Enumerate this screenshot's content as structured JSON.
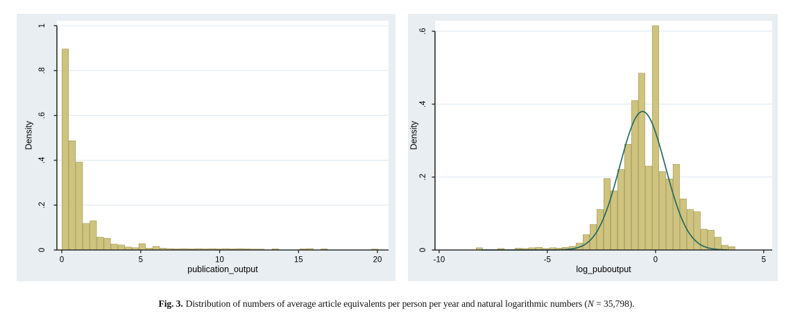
{
  "figure": {
    "caption": {
      "label": "Fig. 3.",
      "body": "Distribution of numbers of average article equivalents per person per year and natural logarithmic numbers (",
      "n_symbol": "N",
      "tail": " = 35,798)."
    }
  },
  "style": {
    "panel_bg": "#e8eef2",
    "plot_bg": "#ffffff",
    "grid_color": "#dfeaf3",
    "axis_color": "#2b2b2b",
    "text_color": "#000000",
    "bar_fill": "#cfc47f",
    "bar_stroke": "#a79b5c",
    "curve_color": "#25685f"
  },
  "chart_data": [
    {
      "type": "bar",
      "title": "",
      "xlabel": "publication_output",
      "ylabel": "Density",
      "xlim": [
        -0.31,
        20.7
      ],
      "ylim": [
        0,
        1.022
      ],
      "xticks": [
        0,
        5,
        10,
        15,
        20
      ],
      "xtick_labels": [
        "0",
        "5",
        "10",
        "15",
        "20"
      ],
      "yticks": [
        0,
        0.2,
        0.4,
        0.6,
        0.8,
        1
      ],
      "ytick_labels": [
        "0",
        ".2",
        ".4",
        ".6",
        ".8",
        "1"
      ],
      "grid": true,
      "legend": "none",
      "bin_width": 0.443,
      "bars": [
        [
          0.0,
          0.896
        ],
        [
          0.44,
          0.487
        ],
        [
          0.89,
          0.392
        ],
        [
          1.33,
          0.118
        ],
        [
          1.77,
          0.13
        ],
        [
          2.22,
          0.057
        ],
        [
          2.66,
          0.052
        ],
        [
          3.1,
          0.026
        ],
        [
          3.55,
          0.022
        ],
        [
          3.99,
          0.013
        ],
        [
          4.43,
          0.01
        ],
        [
          4.87,
          0.028
        ],
        [
          5.32,
          0.008
        ],
        [
          5.76,
          0.016
        ],
        [
          6.2,
          0.008
        ],
        [
          6.65,
          0.006
        ],
        [
          7.09,
          0.005
        ],
        [
          7.53,
          0.006
        ],
        [
          7.98,
          0.005
        ],
        [
          8.42,
          0.006
        ],
        [
          8.86,
          0.005
        ],
        [
          9.31,
          0.006
        ],
        [
          9.75,
          0.005
        ],
        [
          10.19,
          0.006
        ],
        [
          10.64,
          0.005
        ],
        [
          11.08,
          0.006
        ],
        [
          11.52,
          0.005
        ],
        [
          11.97,
          0.004
        ],
        [
          12.41,
          0.004
        ],
        [
          13.3,
          0.005
        ],
        [
          15.07,
          0.005
        ],
        [
          15.51,
          0.006
        ],
        [
          16.4,
          0.005
        ],
        [
          19.61,
          0.004
        ]
      ]
    },
    {
      "type": "bar",
      "title": "",
      "xlabel": "log_puboutput",
      "ylabel": "Density",
      "xlim": [
        -10.19,
        5.39
      ],
      "ylim": [
        0,
        0.6287
      ],
      "xticks": [
        -10,
        -5,
        0,
        5
      ],
      "xtick_labels": [
        "-10",
        "-5",
        "0",
        "5"
      ],
      "yticks": [
        0,
        0.2,
        0.4,
        0.6
      ],
      "ytick_labels": [
        "0",
        ".2",
        ".4",
        ".6"
      ],
      "grid": true,
      "legend": "none",
      "bin_width": 0.32,
      "bars": [
        [
          -8.3,
          0.006
        ],
        [
          -7.3,
          0.004
        ],
        [
          -6.5,
          0.005
        ],
        [
          -6.18,
          0.004
        ],
        [
          -5.86,
          0.006
        ],
        [
          -5.54,
          0.007
        ],
        [
          -5.22,
          0.004
        ],
        [
          -4.9,
          0.006
        ],
        [
          -4.64,
          0.005
        ],
        [
          -4.32,
          0.007
        ],
        [
          -4.0,
          0.01
        ],
        [
          -3.68,
          0.019
        ],
        [
          -3.36,
          0.042
        ],
        [
          -3.04,
          0.07
        ],
        [
          -2.72,
          0.111
        ],
        [
          -2.4,
          0.196
        ],
        [
          -2.08,
          0.162
        ],
        [
          -1.76,
          0.221
        ],
        [
          -1.44,
          0.29
        ],
        [
          -1.12,
          0.41
        ],
        [
          -0.8,
          0.485
        ],
        [
          -0.48,
          0.23
        ],
        [
          -0.16,
          0.615
        ],
        [
          0.16,
          0.215
        ],
        [
          0.48,
          0.195
        ],
        [
          0.8,
          0.235
        ],
        [
          1.12,
          0.14
        ],
        [
          1.44,
          0.111
        ],
        [
          1.76,
          0.105
        ],
        [
          2.08,
          0.057
        ],
        [
          2.4,
          0.054
        ],
        [
          2.72,
          0.035
        ],
        [
          3.04,
          0.013
        ],
        [
          3.36,
          0.009
        ]
      ],
      "normal_curve": {
        "mean": -0.6,
        "sd": 1.05,
        "from": -8.05,
        "to": 3.3,
        "peak_density": 0.38
      }
    }
  ]
}
